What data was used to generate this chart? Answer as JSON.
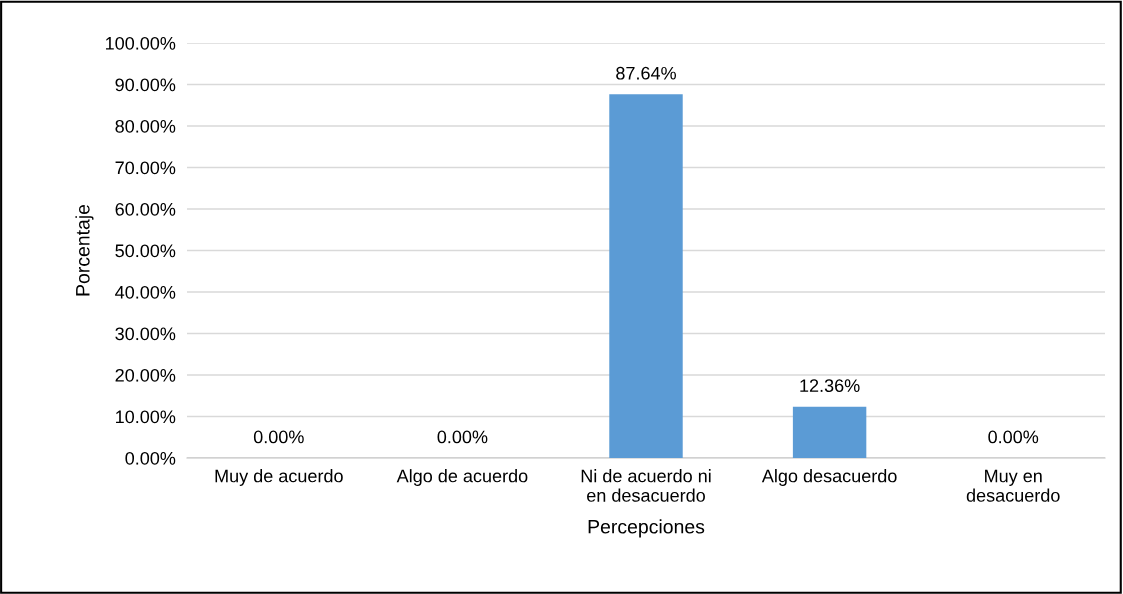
{
  "chart_data": {
    "type": "bar",
    "xlabel": "Percepciones",
    "ylabel": "Porcentaje",
    "categories": [
      "Muy de acuerdo",
      "Algo de acuerdo",
      "Ni de acuerdo ni\nen desacuerdo",
      "Algo desacuerdo",
      "Muy en\ndesacuerdo"
    ],
    "values": [
      0,
      0,
      87.64,
      12.36,
      0
    ],
    "value_labels": [
      "0.00%",
      "0.00%",
      "87.64%",
      "12.36%",
      "0.00%"
    ],
    "color": "#5b9bd5",
    "ylim": [
      0,
      100
    ],
    "yticks": [
      {
        "value": 0,
        "label": "0.00%"
      },
      {
        "value": 10,
        "label": "10.00%"
      },
      {
        "value": 20,
        "label": "20.00%"
      },
      {
        "value": 30,
        "label": "30.00%"
      },
      {
        "value": 40,
        "label": "40.00%"
      },
      {
        "value": 50,
        "label": "50.00%"
      },
      {
        "value": 60,
        "label": "60.00%"
      },
      {
        "value": 70,
        "label": "70.00%"
      },
      {
        "value": 80,
        "label": "80.00%"
      },
      {
        "value": 90,
        "label": "90.00%"
      },
      {
        "value": 100,
        "label": "100.00%"
      }
    ],
    "grid": "y",
    "legend": false
  }
}
